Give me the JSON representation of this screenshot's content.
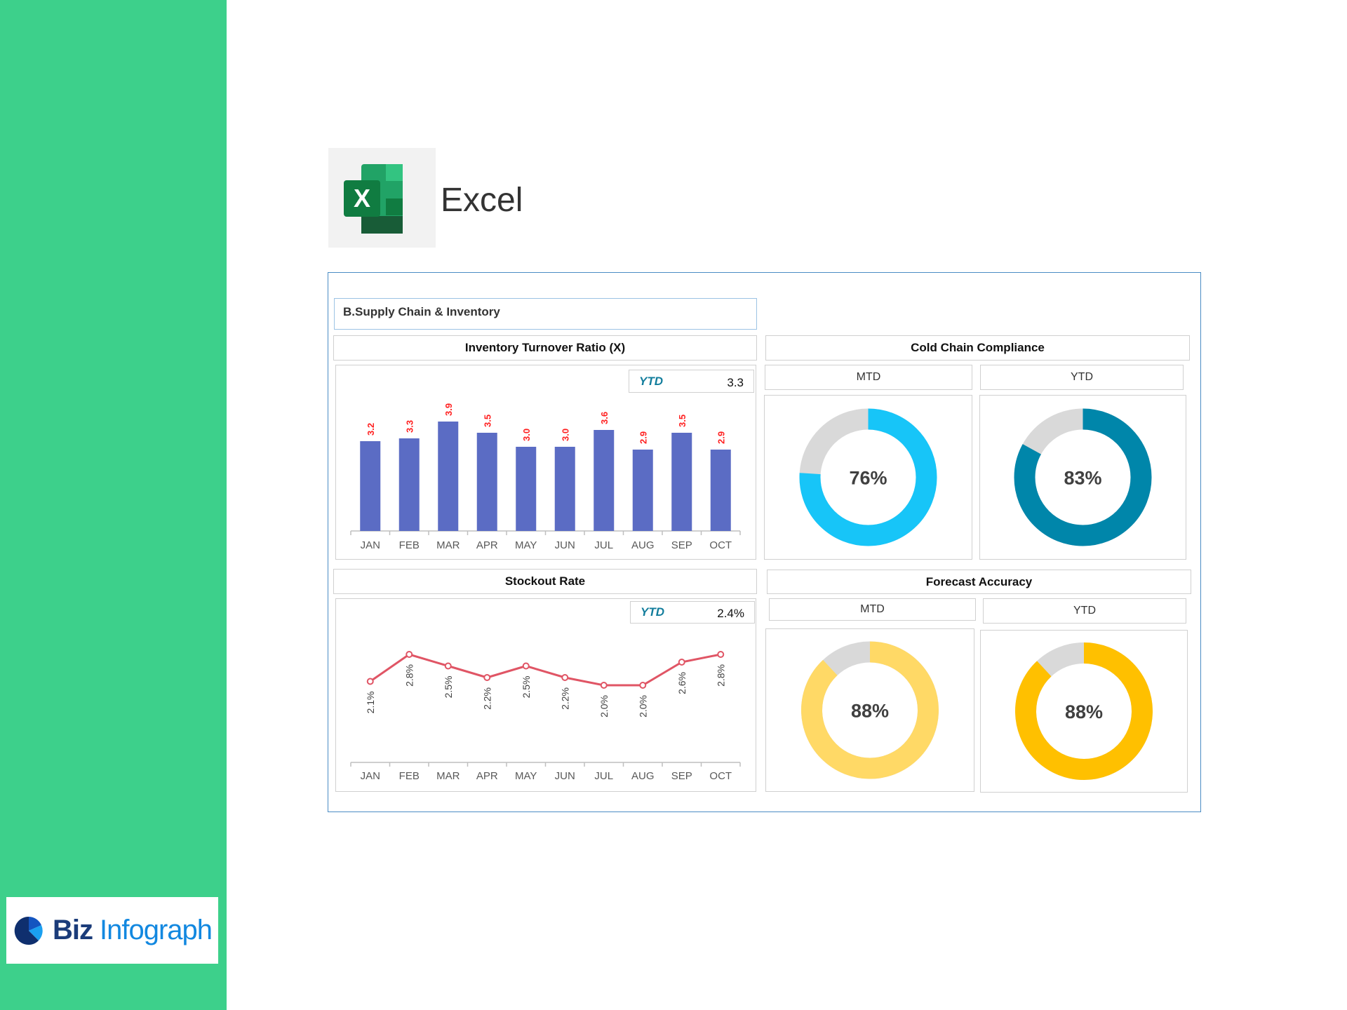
{
  "app": {
    "name": "Excel"
  },
  "brand": {
    "name_part1": "Biz",
    "name_part2": "Infograph"
  },
  "dashboard": {
    "title": "B.Supply Chain & Inventory",
    "inventory": {
      "title": "Inventory Turnover Ratio (X)",
      "ytd_label": "YTD",
      "ytd_value": "3.3"
    },
    "stockout": {
      "title": "Stockout Rate",
      "ytd_label": "YTD",
      "ytd_value": "2.4%"
    },
    "cold_chain": {
      "title": "Cold Chain Compliance",
      "mtd_label": "MTD",
      "ytd_label": "YTD",
      "mtd_value": 76,
      "ytd_value": 83,
      "mtd_text": "76%",
      "ytd_text": "83%",
      "mtd_color": "#17C5F8",
      "ytd_color": "#0086AA"
    },
    "forecast": {
      "title": "Forecast Accuracy",
      "mtd_label": "MTD",
      "ytd_label": "YTD",
      "mtd_value": 88,
      "ytd_value": 88,
      "mtd_text": "88%",
      "ytd_text": "88%",
      "mtd_color": "#FFD966",
      "ytd_color": "#FFC000"
    },
    "remainder_color": "#D9D9D9"
  },
  "chart_data": [
    {
      "type": "bar",
      "title": "Inventory Turnover Ratio (X)",
      "categories": [
        "JAN",
        "FEB",
        "MAR",
        "APR",
        "MAY",
        "JUN",
        "JUL",
        "AUG",
        "SEP",
        "OCT"
      ],
      "values": [
        3.2,
        3.3,
        3.9,
        3.5,
        3.0,
        3.0,
        3.6,
        2.9,
        3.5,
        2.9
      ],
      "labels": [
        "3.2",
        "3.3",
        "3.9",
        "3.5",
        "3.0",
        "3.0",
        "3.6",
        "2.9",
        "3.5",
        "2.9"
      ],
      "ylim": [
        0,
        4
      ],
      "color": "#5B6CC4",
      "label_color": "#FF2020"
    },
    {
      "type": "line",
      "title": "Stockout Rate",
      "categories": [
        "JAN",
        "FEB",
        "MAR",
        "APR",
        "MAY",
        "JUN",
        "JUL",
        "AUG",
        "SEP",
        "OCT"
      ],
      "values": [
        2.1,
        2.8,
        2.5,
        2.2,
        2.5,
        2.2,
        2.0,
        2.0,
        2.6,
        2.8
      ],
      "labels": [
        "2.1%",
        "2.8%",
        "2.5%",
        "2.2%",
        "2.5%",
        "2.2%",
        "2.0%",
        "2.0%",
        "2.6%",
        "2.8%"
      ],
      "ylim": [
        0,
        4.2
      ],
      "color": "#E05565"
    }
  ]
}
